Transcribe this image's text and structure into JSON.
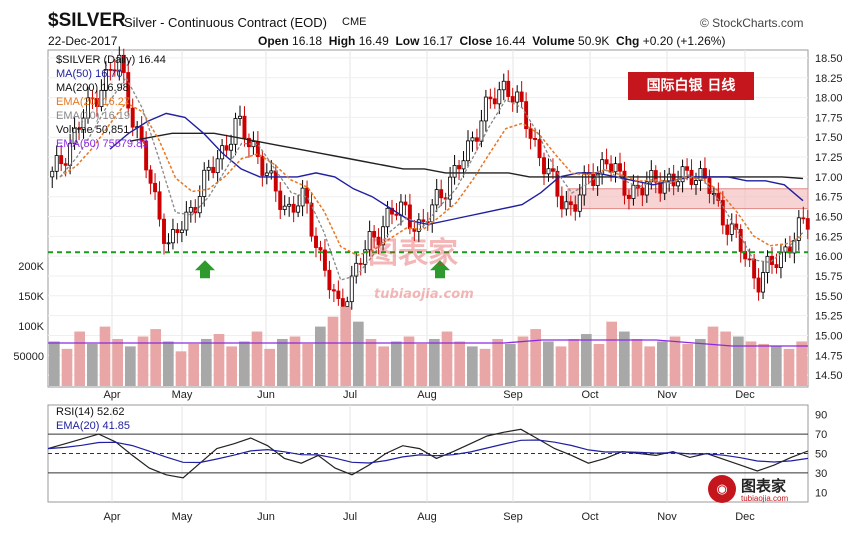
{
  "header": {
    "symbol": "$SILVER",
    "description": "Silver - Continuous Contract (EOD)",
    "exchange": "CME",
    "date": "22-Dec-2017",
    "open_label": "Open",
    "open": "16.18",
    "high_label": "High",
    "high": "16.49",
    "low_label": "Low",
    "low": "16.17",
    "close_label": "Close",
    "close": "16.44",
    "volume_label": "Volume",
    "volume": "50.9K",
    "chg_label": "Chg",
    "chg": "+0.20 (+1.26%)",
    "brand": "© StockCharts.com"
  },
  "annotation": {
    "cn_label": "国际白银  日线"
  },
  "watermark": {
    "main": "图表家",
    "sub": "tubiaojia.com",
    "logo": "图表家",
    "logo_sub": "tubiaojia.com"
  },
  "legend": {
    "price": "$SILVER (Daily) 16.44",
    "ma50": "MA(50) 16.70",
    "ma200": "MA(200) 16.98",
    "ema20": "EMA(20) 16.27",
    "ema10": "EMA(10) 16.19",
    "volume": "Volume 50,851",
    "vol_ema50": "EMA(50) 75579.89",
    "rsi": "RSI(14) 52.62",
    "rsi_ema": "EMA(20) 41.85"
  },
  "colors": {
    "up": "#000000",
    "down": "#cc0000",
    "ma50": "#1f1fa0",
    "ma200": "#222222",
    "ema20": "#e87722",
    "ema10": "#888888",
    "vol_up": "#a8a8a8",
    "vol_down": "#e8a6a6",
    "vol_ema": "#8a2be2",
    "support": "#1a9a1a",
    "zone": "#f4b6b6",
    "arrow": "#2e9a2e"
  },
  "chart_data": [
    {
      "type": "candlestick",
      "title": "$SILVER (Daily) 16.44",
      "ylim": [
        14.35,
        18.6
      ],
      "y_ticks": [
        "18.50",
        "18.25",
        "18.00",
        "17.75",
        "17.50",
        "17.25",
        "17.00",
        "16.75",
        "16.50",
        "16.25",
        "16.00",
        "15.75",
        "15.50",
        "15.25",
        "15.00",
        "14.75",
        "14.50"
      ],
      "x_ticks": [
        "Apr",
        "May",
        "Jun",
        "Jul",
        "Aug",
        "Sep",
        "Oct",
        "Nov",
        "Dec"
      ],
      "support_level": 16.05,
      "resistance_zone": [
        16.6,
        16.85
      ],
      "buy_arrows": [
        "May",
        "Aug"
      ],
      "price_path": [
        {
          "x": "Mar-20",
          "y": 17.0
        },
        {
          "x": "Mar-28",
          "y": 17.4
        },
        {
          "x": "Apr-05",
          "y": 17.8
        },
        {
          "x": "Apr-12",
          "y": 18.2
        },
        {
          "x": "Apr-17",
          "y": 18.45
        },
        {
          "x": "Apr-24",
          "y": 17.6
        },
        {
          "x": "May-01",
          "y": 16.8
        },
        {
          "x": "May-08",
          "y": 16.1
        },
        {
          "x": "May-15",
          "y": 16.5
        },
        {
          "x": "May-22",
          "y": 16.9
        },
        {
          "x": "May-29",
          "y": 17.3
        },
        {
          "x": "Jun-06",
          "y": 17.65
        },
        {
          "x": "Jun-12",
          "y": 17.4
        },
        {
          "x": "Jun-19",
          "y": 16.9
        },
        {
          "x": "Jun-26",
          "y": 16.6
        },
        {
          "x": "Jun-30",
          "y": 16.7
        },
        {
          "x": "Jul-05",
          "y": 16.0
        },
        {
          "x": "Jul-07",
          "y": 15.3
        },
        {
          "x": "Jul-12",
          "y": 15.8
        },
        {
          "x": "Jul-19",
          "y": 16.2
        },
        {
          "x": "Jul-26",
          "y": 16.5
        },
        {
          "x": "Aug-01",
          "y": 16.6
        },
        {
          "x": "Aug-08",
          "y": 16.3
        },
        {
          "x": "Aug-14",
          "y": 16.8
        },
        {
          "x": "Aug-21",
          "y": 17.0
        },
        {
          "x": "Aug-28",
          "y": 17.5
        },
        {
          "x": "Sep-04",
          "y": 17.9
        },
        {
          "x": "Sep-08",
          "y": 18.2
        },
        {
          "x": "Sep-14",
          "y": 17.8
        },
        {
          "x": "Sep-21",
          "y": 17.3
        },
        {
          "x": "Sep-28",
          "y": 16.8
        },
        {
          "x": "Oct-03",
          "y": 16.6
        },
        {
          "x": "Oct-09",
          "y": 17.0
        },
        {
          "x": "Oct-16",
          "y": 17.2
        },
        {
          "x": "Oct-23",
          "y": 16.9
        },
        {
          "x": "Oct-30",
          "y": 16.8
        },
        {
          "x": "Nov-06",
          "y": 17.0
        },
        {
          "x": "Nov-13",
          "y": 16.9
        },
        {
          "x": "Nov-20",
          "y": 17.1
        },
        {
          "x": "Nov-27",
          "y": 16.9
        },
        {
          "x": "Dec-01",
          "y": 16.5
        },
        {
          "x": "Dec-06",
          "y": 16.1
        },
        {
          "x": "Dec-12",
          "y": 15.7
        },
        {
          "x": "Dec-15",
          "y": 15.9
        },
        {
          "x": "Dec-20",
          "y": 16.2
        },
        {
          "x": "Dec-22",
          "y": 16.44
        }
      ],
      "ma50_path": [
        17.35,
        17.55,
        17.7,
        17.8,
        17.75,
        17.55,
        17.3,
        17.1,
        17.0,
        17.0,
        17.0,
        17.05,
        17.0,
        16.85,
        16.75,
        16.6,
        16.45,
        16.4,
        16.45,
        16.5,
        16.55,
        16.6,
        16.65,
        16.8,
        17.0,
        17.05,
        17.05,
        17.0,
        16.95,
        16.9,
        16.95,
        17.0,
        17.0,
        17.0,
        16.95,
        16.95,
        16.9,
        16.7
      ],
      "ma200_path": [
        17.45,
        17.5,
        17.55,
        17.55,
        17.55,
        17.5,
        17.45,
        17.4,
        17.35,
        17.3,
        17.25,
        17.2,
        17.15,
        17.1,
        17.1,
        17.05,
        17.05,
        17.05,
        17.05,
        17.0,
        17.0,
        17.0,
        17.0,
        17.0,
        17.0,
        17.0,
        17.0,
        17.0,
        17.0,
        17.0,
        17.0,
        17.0,
        16.98
      ]
    },
    {
      "type": "bar",
      "title": "Volume 50,851",
      "y_ticks": [
        "200K",
        "150K",
        "100K",
        "50000"
      ],
      "ylim": [
        0,
        220000
      ],
      "values": [
        90,
        75,
        110,
        85,
        120,
        95,
        80,
        100,
        115,
        90,
        70,
        85,
        95,
        105,
        80,
        90,
        110,
        75,
        95,
        100,
        85,
        120,
        140,
        160,
        130,
        95,
        80,
        90,
        100,
        85,
        95,
        110,
        90,
        80,
        75,
        95,
        85,
        100,
        115,
        90,
        80,
        95,
        105,
        85,
        130,
        110,
        95,
        80,
        90,
        100,
        85,
        95,
        120,
        110,
        100,
        90,
        85,
        80,
        75,
        90
      ]
    },
    {
      "type": "line",
      "title": "RSI(14) 52.62",
      "ylim": [
        0,
        100
      ],
      "y_ticks": [
        "90",
        "70",
        "50",
        "30",
        "10"
      ],
      "values": [
        55,
        60,
        65,
        70,
        62,
        48,
        35,
        28,
        25,
        40,
        55,
        60,
        66,
        58,
        45,
        40,
        48,
        35,
        28,
        38,
        50,
        58,
        55,
        45,
        52,
        60,
        68,
        72,
        75,
        65,
        55,
        48,
        40,
        45,
        52,
        50,
        48,
        52,
        46,
        50,
        44,
        38,
        32,
        38,
        46,
        52.62
      ]
    }
  ]
}
